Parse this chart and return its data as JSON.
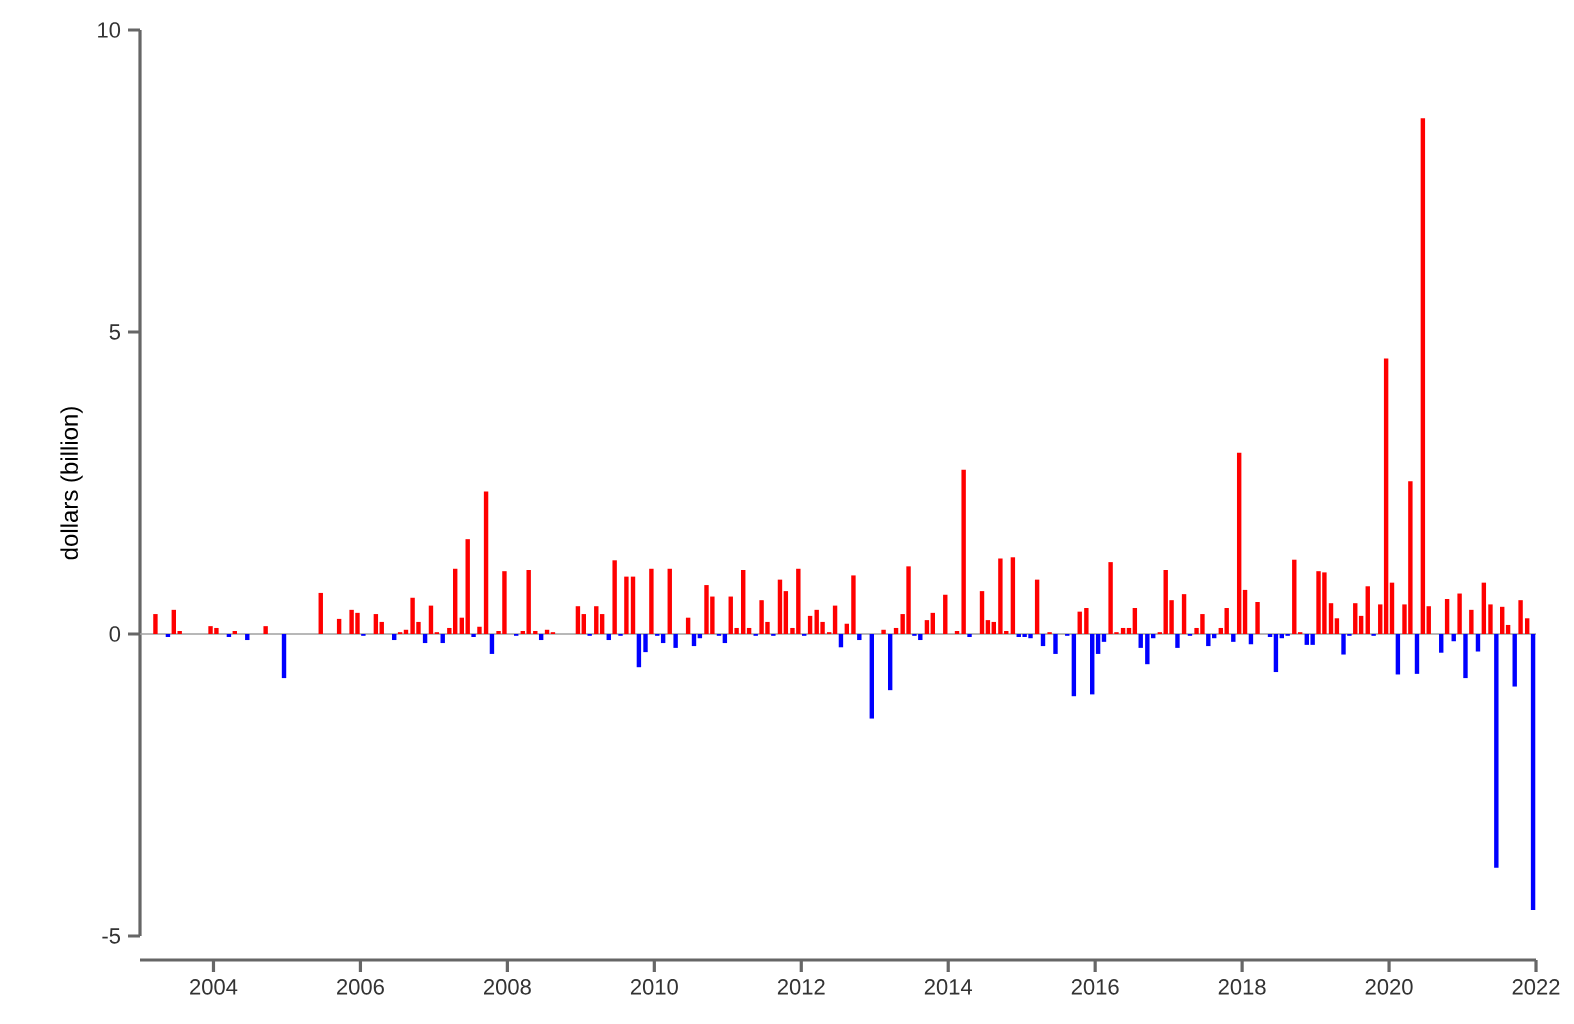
{
  "chart_data": {
    "type": "bar",
    "ylabel": "dollars (billion)",
    "series": [
      {
        "color": "#ff0000",
        "x": [
          "2003-03",
          "2003-06",
          "2003-07",
          "2003-12",
          "2004-01",
          "2004-04",
          "2004-09",
          "2005-06",
          "2005-09",
          "2005-11",
          "2005-12",
          "2006-03",
          "2006-04",
          "2006-07",
          "2006-08",
          "2006-09",
          "2006-10",
          "2006-12",
          "2007-01",
          "2007-03",
          "2007-04",
          "2007-05",
          "2007-06",
          "2007-08",
          "2007-09",
          "2007-11",
          "2007-12",
          "2008-03",
          "2008-04",
          "2008-05",
          "2008-07",
          "2008-08",
          "2008-12",
          "2009-01",
          "2009-03",
          "2009-04",
          "2009-06",
          "2009-08",
          "2009-09",
          "2009-12",
          "2010-03",
          "2010-06",
          "2010-09",
          "2010-10",
          "2011-01",
          "2011-02",
          "2011-03",
          "2011-04",
          "2011-06",
          "2011-07",
          "2011-09",
          "2011-10",
          "2011-11",
          "2011-12",
          "2012-02",
          "2012-03",
          "2012-04",
          "2012-05",
          "2012-06",
          "2012-08",
          "2012-09",
          "2013-02",
          "2013-04",
          "2013-05",
          "2013-06",
          "2013-09",
          "2013-10",
          "2013-12",
          "2014-02",
          "2014-03",
          "2014-06",
          "2014-07",
          "2014-08",
          "2014-09",
          "2014-10",
          "2014-11",
          "2015-03",
          "2015-05",
          "2015-10",
          "2015-11",
          "2016-03",
          "2016-04",
          "2016-05",
          "2016-06",
          "2016-07",
          "2016-11",
          "2016-12",
          "2017-01",
          "2017-03",
          "2017-05",
          "2017-06",
          "2017-09",
          "2017-10",
          "2017-12",
          "2018-01",
          "2018-03",
          "2018-09",
          "2018-10",
          "2019-01",
          "2019-02",
          "2019-03",
          "2019-04",
          "2019-07",
          "2019-08",
          "2019-09",
          "2019-11",
          "2019-12",
          "2020-01",
          "2020-03",
          "2020-04",
          "2020-06",
          "2020-07",
          "2020-10",
          "2020-12",
          "2021-02",
          "2021-04",
          "2021-05",
          "2021-07",
          "2021-08",
          "2021-10",
          "2021-11"
        ],
        "values": [
          0.33,
          0.4,
          0.05,
          0.13,
          0.1,
          0.05,
          0.13,
          0.68,
          0.25,
          0.4,
          0.35,
          0.33,
          0.2,
          0.03,
          0.07,
          0.6,
          0.2,
          0.47,
          0.03,
          0.1,
          1.08,
          0.27,
          1.57,
          0.12,
          2.36,
          0.05,
          1.04,
          0.05,
          1.06,
          0.05,
          0.07,
          0.03,
          0.46,
          0.33,
          0.46,
          0.33,
          1.22,
          0.95,
          0.95,
          1.08,
          1.08,
          0.27,
          0.81,
          0.62,
          0.62,
          0.1,
          1.06,
          0.1,
          0.56,
          0.2,
          0.9,
          0.71,
          0.1,
          1.08,
          0.3,
          0.4,
          0.2,
          0.03,
          0.47,
          0.17,
          0.97,
          0.07,
          0.1,
          0.33,
          1.12,
          0.23,
          0.35,
          0.65,
          0.05,
          2.72,
          0.71,
          0.23,
          0.2,
          1.25,
          0.05,
          1.27,
          0.9,
          0.03,
          0.37,
          0.43,
          1.19,
          0.03,
          0.1,
          0.1,
          0.43,
          0.03,
          1.06,
          0.56,
          0.66,
          0.1,
          0.33,
          0.1,
          0.43,
          3.0,
          0.73,
          0.53,
          1.23,
          0.03,
          1.04,
          1.02,
          0.51,
          0.26,
          0.51,
          0.3,
          0.79,
          0.49,
          4.56,
          0.85,
          0.49,
          2.53,
          8.54,
          0.46,
          0.58,
          0.67,
          0.4,
          0.85,
          0.49,
          0.45,
          0.15,
          0.56,
          0.26
        ]
      },
      {
        "color": "#0000ff",
        "x": [
          "2003-05",
          "2004-03",
          "2004-06",
          "2004-12",
          "2006-01",
          "2006-06",
          "2006-11",
          "2007-02",
          "2007-07",
          "2007-10",
          "2008-02",
          "2008-06",
          "2009-02",
          "2009-05",
          "2009-07",
          "2009-10",
          "2009-11",
          "2010-01",
          "2010-02",
          "2010-04",
          "2010-07",
          "2010-08",
          "2010-11",
          "2010-12",
          "2011-05",
          "2011-08",
          "2012-01",
          "2012-07",
          "2012-10",
          "2012-12",
          "2013-03",
          "2013-07",
          "2013-08",
          "2014-04",
          "2014-12",
          "2015-01",
          "2015-02",
          "2015-04",
          "2015-06",
          "2015-08",
          "2015-09",
          "2015-12",
          "2016-01",
          "2016-02",
          "2016-08",
          "2016-09",
          "2016-10",
          "2017-02",
          "2017-04",
          "2017-07",
          "2017-08",
          "2017-11",
          "2018-02",
          "2018-05",
          "2018-06",
          "2018-07",
          "2018-08",
          "2018-11",
          "2018-12",
          "2019-05",
          "2019-06",
          "2019-10",
          "2020-02",
          "2020-05",
          "2020-09",
          "2020-11",
          "2021-01",
          "2021-03",
          "2021-06",
          "2021-09",
          "2021-12"
        ],
        "values": [
          -0.05,
          -0.05,
          -0.1,
          -0.73,
          -0.03,
          -0.1,
          -0.15,
          -0.15,
          -0.05,
          -0.33,
          -0.03,
          -0.1,
          -0.03,
          -0.1,
          -0.03,
          -0.55,
          -0.3,
          -0.03,
          -0.15,
          -0.23,
          -0.2,
          -0.07,
          -0.03,
          -0.15,
          -0.03,
          -0.03,
          -0.03,
          -0.22,
          -0.1,
          -1.4,
          -0.93,
          -0.03,
          -0.1,
          -0.05,
          -0.05,
          -0.05,
          -0.07,
          -0.2,
          -0.33,
          -0.03,
          -1.03,
          -1.0,
          -0.33,
          -0.13,
          -0.23,
          -0.5,
          -0.07,
          -0.23,
          -0.03,
          -0.2,
          -0.07,
          -0.13,
          -0.17,
          -0.05,
          -0.63,
          -0.07,
          -0.03,
          -0.18,
          -0.18,
          -0.34,
          -0.03,
          -0.03,
          -0.67,
          -0.66,
          -0.31,
          -0.12,
          -0.73,
          -0.29,
          -3.87,
          -0.87,
          -4.57
        ]
      }
    ],
    "xlim": [
      "2003-01",
      "2022-01"
    ],
    "xticks": [
      "2004",
      "2006",
      "2008",
      "2010",
      "2012",
      "2014",
      "2016",
      "2018",
      "2020",
      "2022"
    ],
    "ylim": [
      -5,
      10
    ],
    "yticks": [
      -5,
      0,
      5,
      10
    ],
    "ref_lines": [
      {
        "axis": "y",
        "value": 0,
        "color": "#a0a0a0"
      }
    ],
    "grid": false
  }
}
